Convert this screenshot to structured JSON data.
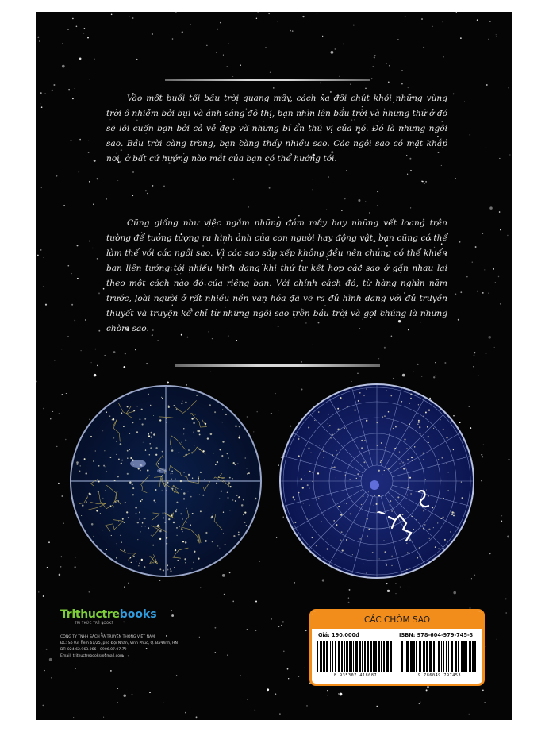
{
  "cover": {
    "paragraph_1": "Vào một buổi tối bầu trời quang mây, cách xa đôi chút khỏi những vùng trời ô nhiễm bởi bụi và ánh sáng đô thị, bạn nhìn lên bầu trời và những thứ ở đó sẽ lôi cuốn bạn bởi cả vẻ đẹp và những bí ẩn thú vị của nó. Đó là những ngôi sao. Bầu trời càng trong, bạn càng thấy nhiều sao. Các ngôi sao có mặt khắp nơi, ở bất cứ hướng nào mắt của bạn có thể hướng tới.",
    "paragraph_2": "Cũng giống như việc ngắm những đám mây hay những vết loang trên tường để tưởng tượng ra hình ảnh của con người hay động vật, bạn cũng có thể làm thế với các ngôi sao. Vì các sao sắp xếp không đều nên chúng có thể khiến bạn liên tưởng tới nhiều hình dạng khi thử tự kết hợp các sao ở gần nhau lại theo một cách nào đó của riêng bạn. Với chính cách đó, từ hàng nghìn năm trước, loài người ở rất nhiều nền văn hóa đã vẽ ra đủ hình dạng với đủ truyền thuyết và truyện kể chỉ từ những ngôi sao trên bầu trời và gọi chúng là những chòm sao.",
    "background_color": "#050505",
    "accent_color": "#f28c1a"
  },
  "publisher": {
    "logo_part1": "Trithuctre",
    "logo_part2": "books",
    "logo_tagline": "TRI THỨC TRẺ BOOKS",
    "company": "CÔNG TY TNHH SÁCH VÀ TRUYỀN THÔNG VIỆT NAM",
    "address": "ĐC: Số 03, hẻm 61/25, phố Đội Nhân, Vĩnh Phúc, Q. Ba Đình, HN",
    "phone": "ĐT: 024.62.963.066 - 0906.07.07.79",
    "email": "Email: trithuctrebooks@gmail.com"
  },
  "price_box": {
    "title": "CÁC CHÒM SAO",
    "price": "Giá: 190.000đ",
    "isbn": "ISBN: 978-604-979-745-3",
    "barcode_left": "8 935307 418087",
    "barcode_right": "9 786049 797453"
  }
}
